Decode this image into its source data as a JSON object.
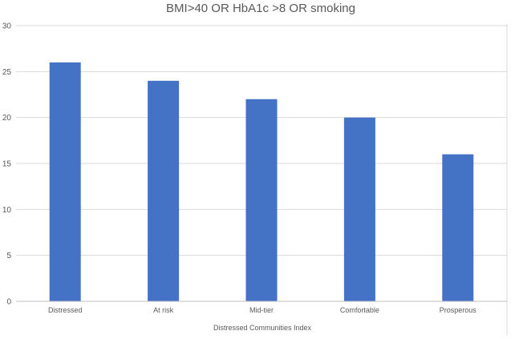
{
  "chart_data": {
    "type": "bar",
    "title": "BMI>40 OR HbA1c >8 OR smoking",
    "xlabel": "Distressed Communities Index",
    "ylabel": "",
    "categories": [
      "Distressed",
      "At risk",
      "Mid-tier",
      "Comfortable",
      "Prosperous"
    ],
    "values": [
      26,
      24,
      22,
      20,
      16
    ],
    "ylim": [
      0,
      30
    ],
    "yticks": [
      0,
      5,
      10,
      15,
      20,
      25,
      30
    ],
    "grid": true,
    "legend": "none",
    "bar_color": "#4472c4"
  }
}
